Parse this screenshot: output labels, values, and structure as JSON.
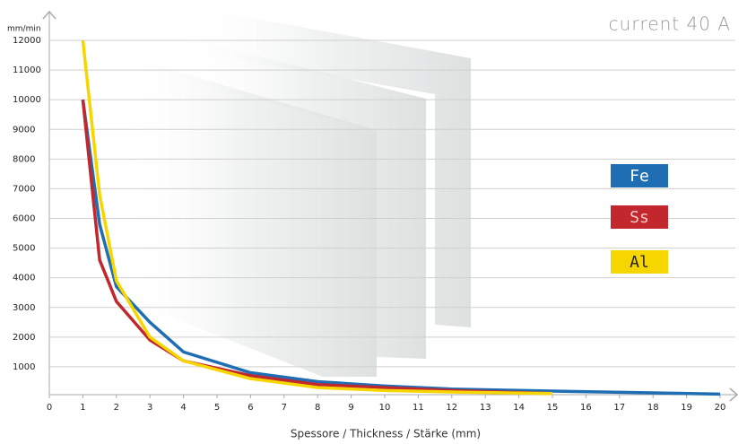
{
  "chart_data": {
    "type": "line",
    "title": "current 40 A",
    "y_label": "mm/min",
    "x_label": "Spessore / Thickness / Stärke (mm)",
    "x": [
      1,
      1.5,
      2,
      3,
      4,
      6,
      8,
      10,
      12,
      15,
      20
    ],
    "series": [
      {
        "name": "Fe",
        "color": "#1f6db3",
        "values": [
          10000,
          5800,
          3700,
          2500,
          1500,
          800,
          500,
          350,
          250,
          180,
          80
        ]
      },
      {
        "name": "Ss",
        "color": "#c1272d",
        "values": [
          10000,
          4600,
          3200,
          1900,
          1200,
          700,
          400,
          300,
          200,
          100,
          null
        ]
      },
      {
        "name": "Al",
        "color": "#f7d600",
        "values": [
          12000,
          6800,
          3900,
          2000,
          1200,
          600,
          300,
          200,
          150,
          100,
          null
        ]
      }
    ],
    "xlim": [
      0,
      20
    ],
    "xticks": [
      0,
      1,
      2,
      3,
      4,
      5,
      6,
      7,
      8,
      9,
      10,
      11,
      12,
      13,
      14,
      15,
      16,
      17,
      18,
      19,
      20
    ],
    "ylim": [
      0,
      12000
    ],
    "yticks": [
      1000,
      2000,
      3000,
      4000,
      5000,
      6000,
      7000,
      8000,
      9000,
      10000,
      11000,
      12000
    ],
    "grid": true
  }
}
